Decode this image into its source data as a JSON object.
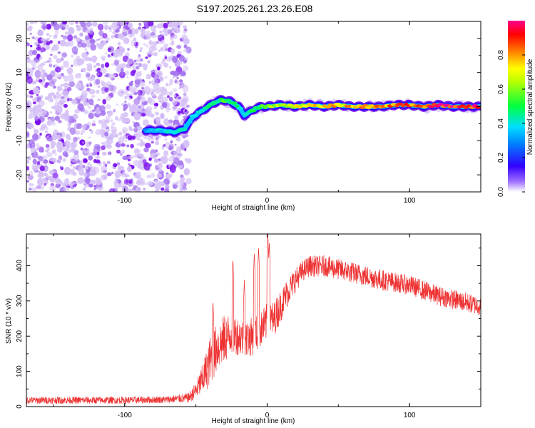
{
  "title": "S197.2025.261.23.26.E08",
  "chart_data": [
    {
      "type": "heatmap",
      "xlabel": "Height of straight line (km)",
      "ylabel": "Frequency (Hz)",
      "xlim": [
        -169,
        150
      ],
      "ylim": [
        -25,
        25
      ],
      "x_ticks": [
        -100,
        0,
        100
      ],
      "y_ticks": [
        -20,
        -10,
        0,
        10,
        20
      ],
      "colorbar": {
        "label": "Normalized spectral amplitude",
        "range": [
          0,
          1
        ],
        "ticks": [
          "0.0",
          "0.2",
          "0.4",
          "0.6",
          "0.8"
        ]
      },
      "noise_region_x": [
        -169,
        -55
      ],
      "ridge": {
        "x": [
          -85,
          -75,
          -65,
          -58,
          -52,
          -45,
          -38,
          -32,
          -26,
          -20,
          -16,
          -12,
          -8,
          -4,
          0,
          10,
          20,
          30,
          40,
          50,
          60,
          70,
          80,
          90,
          100,
          110,
          120,
          130,
          140,
          150
        ],
        "freq": [
          -7,
          -7,
          -7.5,
          -6.5,
          -3,
          -1,
          1,
          2,
          1.5,
          0,
          -2.5,
          -1.5,
          -0.5,
          0,
          0,
          0.5,
          0,
          0.5,
          0,
          0.5,
          0,
          0,
          0,
          0.5,
          0.5,
          0,
          0.5,
          0,
          0,
          0
        ],
        "amplitude": [
          0.35,
          0.4,
          0.45,
          0.4,
          0.4,
          0.45,
          0.5,
          0.55,
          0.5,
          0.45,
          0.4,
          0.45,
          0.55,
          0.6,
          0.65,
          0.7,
          0.7,
          0.75,
          0.75,
          0.8,
          0.8,
          0.85,
          0.85,
          0.9,
          0.9,
          0.95,
          0.95,
          1.0,
          1.0,
          0.95
        ]
      }
    },
    {
      "type": "line",
      "xlabel": "Height of straight line (km)",
      "ylabel": "SNR (10 * v/v)",
      "xlim": [
        -169,
        150
      ],
      "ylim": [
        0,
        490
      ],
      "x_ticks": [
        -100,
        0,
        100
      ],
      "y_ticks": [
        0,
        100,
        200,
        300,
        400
      ],
      "series": [
        {
          "name": "SNR",
          "color": "#ee3333",
          "x": [
            -169,
            -140,
            -100,
            -70,
            -55,
            -50,
            -45,
            -40,
            -35,
            -30,
            -25,
            -20,
            -15,
            -10,
            -5,
            0,
            5,
            10,
            15,
            20,
            25,
            30,
            35,
            40,
            45,
            50,
            60,
            70,
            80,
            90,
            100,
            110,
            120,
            130,
            140,
            150
          ],
          "mean": [
            18,
            18,
            18,
            20,
            25,
            45,
            80,
            130,
            170,
            190,
            210,
            200,
            190,
            200,
            215,
            240,
            250,
            290,
            330,
            360,
            385,
            400,
            398,
            400,
            395,
            390,
            380,
            370,
            360,
            352,
            345,
            330,
            315,
            305,
            295,
            285
          ],
          "spread": [
            10,
            10,
            10,
            10,
            14,
            25,
            45,
            70,
            70,
            70,
            60,
            55,
            55,
            55,
            50,
            55,
            50,
            45,
            40,
            35,
            30,
            30,
            30,
            30,
            30,
            30,
            30,
            30,
            30,
            28,
            28,
            28,
            28,
            28,
            28,
            28
          ],
          "spikes": [
            {
              "x": -38,
              "y": 300
            },
            {
              "x": -24,
              "y": 420
            },
            {
              "x": -16,
              "y": 360
            },
            {
              "x": -9,
              "y": 440
            },
            {
              "x": -6,
              "y": 455
            },
            {
              "x": 0.5,
              "y": 490
            },
            {
              "x": 1.5,
              "y": 470
            }
          ]
        }
      ]
    }
  ]
}
